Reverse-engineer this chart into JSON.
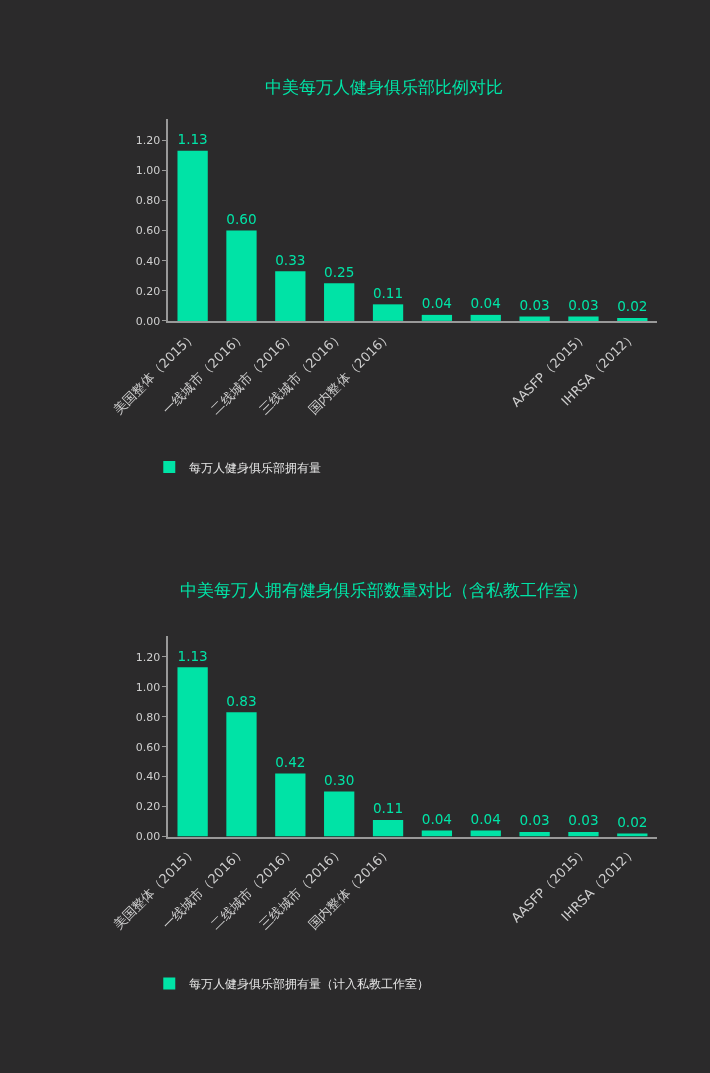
{
  "chart_data": [
    {
      "type": "bar",
      "title": "中美每万人健身俱乐部比例对比",
      "categories": [
        "美国整体（2015）",
        "一线城市（2016）",
        "二线城市（2016）",
        "三线城市（2016）",
        "国内整体（2016）",
        null,
        null,
        null,
        "AASFP（2015）",
        "IHRSA（2012）"
      ],
      "series": [
        {
          "name": "每万人健身俱乐部拥有量",
          "color": "#00e3a6",
          "values": [
            1.13,
            0.6,
            0.33,
            0.25,
            0.11,
            0.04,
            0.04,
            0.03,
            0.03,
            0.02
          ],
          "value_labels": [
            "1.13",
            "0.60",
            "0.33",
            "0.25",
            "0.11",
            "0.04",
            "0.04",
            "0.03",
            "0.03",
            "0.02"
          ]
        }
      ],
      "ylim": [
        0,
        1.34
      ],
      "yticks": [
        {
          "value": 0,
          "label": "0.00"
        },
        {
          "value": 0.2,
          "label": "0.20"
        },
        {
          "value": 0.4,
          "label": "0.40"
        },
        {
          "value": 0.6,
          "label": "0.60"
        },
        {
          "value": 0.8,
          "label": "0.80"
        },
        {
          "value": 1.0,
          "label": "1.00"
        },
        {
          "value": 1.2,
          "label": "1.20"
        }
      ],
      "grid": false,
      "legend": "bottom left"
    },
    {
      "type": "bar",
      "title": "中美每万人拥有健身俱乐部数量对比（含私教工作室）",
      "categories": [
        "美国整体（2015）",
        "一线城市（2016）",
        "二线城市（2016）",
        "三线城市（2016）",
        "国内整体（2016）",
        null,
        null,
        null,
        "AASFP（2015）",
        "IHRSA（2012）"
      ],
      "series": [
        {
          "name": "每万人健身俱乐部拥有量（计入私教工作室）",
          "color": "#00e3a6",
          "values": [
            1.13,
            0.83,
            0.42,
            0.3,
            0.11,
            0.04,
            0.04,
            0.03,
            0.03,
            0.02
          ],
          "value_labels": [
            "1.13",
            "0.83",
            "0.42",
            "0.30",
            "0.11",
            "0.04",
            "0.04",
            "0.03",
            "0.03",
            "0.02"
          ]
        }
      ],
      "ylim": [
        0,
        1.34
      ],
      "yticks": [
        {
          "value": 0,
          "label": "0.00"
        },
        {
          "value": 0.2,
          "label": "0.20"
        },
        {
          "value": 0.4,
          "label": "0.40"
        },
        {
          "value": 0.6,
          "label": "0.60"
        },
        {
          "value": 0.8,
          "label": "0.80"
        },
        {
          "value": 1.0,
          "label": "1.00"
        },
        {
          "value": 1.2,
          "label": "1.20"
        }
      ],
      "grid": false,
      "legend": "bottom left"
    }
  ]
}
